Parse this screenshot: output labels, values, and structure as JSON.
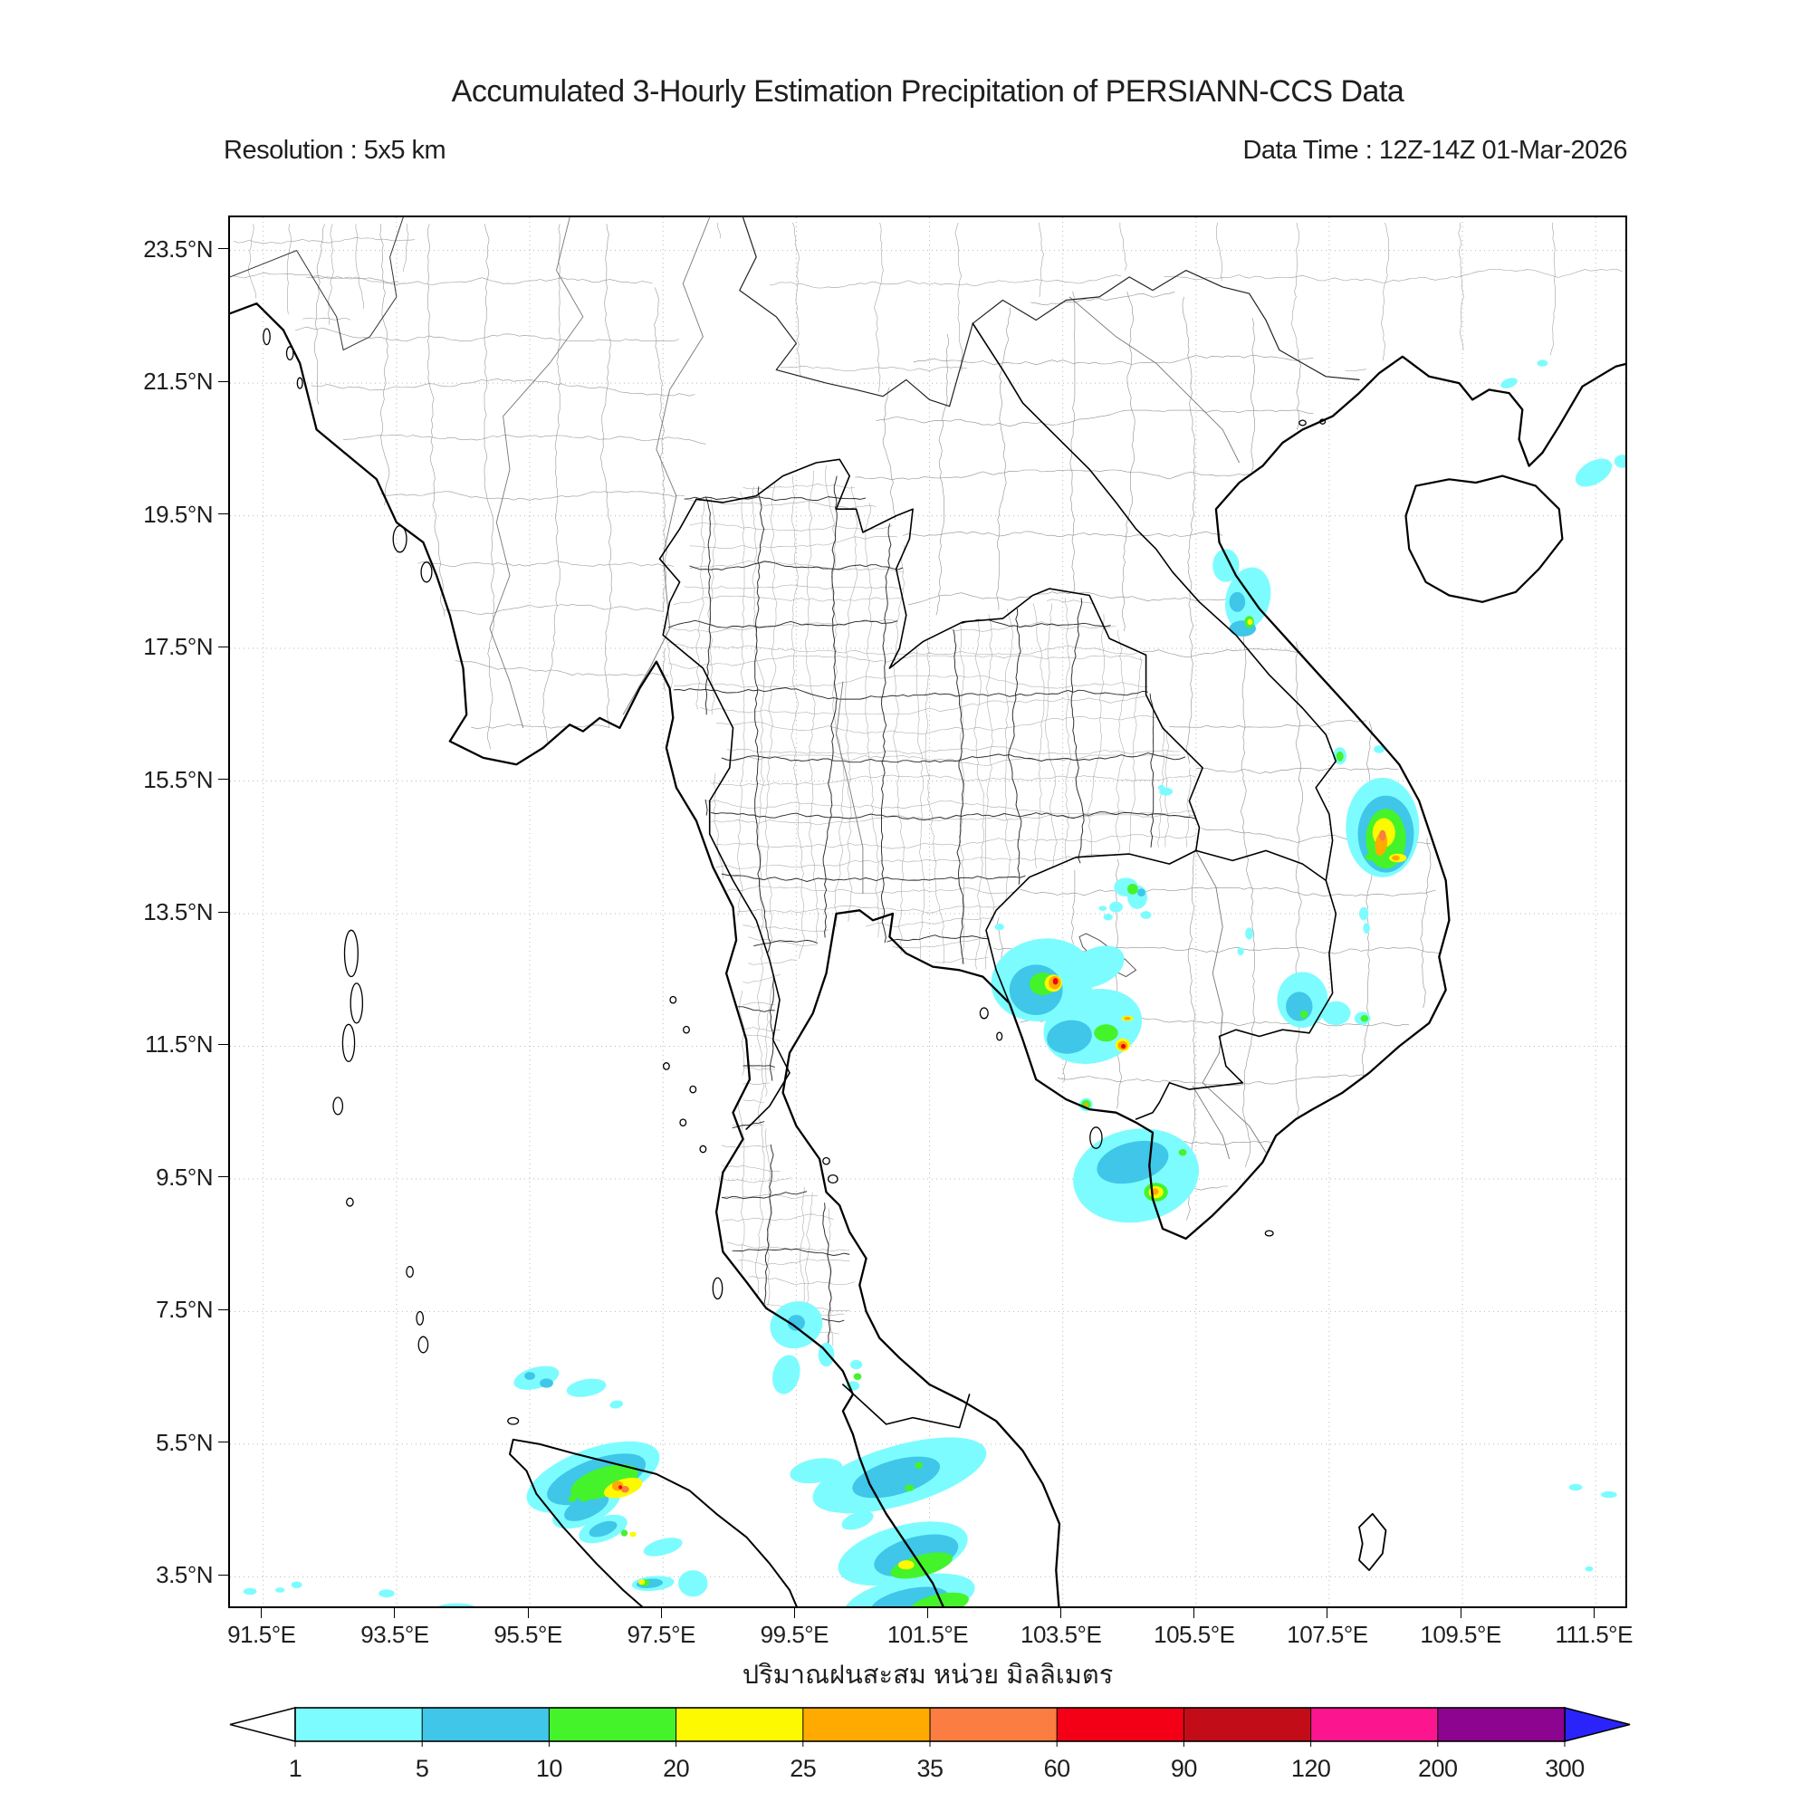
{
  "header": {
    "title": "Accumulated 3-Hourly Estimation Precipitation of PERSIANN-CCS Data",
    "resolution": "Resolution : 5x5 km",
    "data_time": "Data Time : 12Z-14Z 01-Mar-2026"
  },
  "map": {
    "lon_range": [
      91,
      112
    ],
    "lat_range": [
      3,
      24
    ],
    "grid": true,
    "lon_ticks": [
      {
        "value": 91.5,
        "label": "91.5°E"
      },
      {
        "value": 93.5,
        "label": "93.5°E"
      },
      {
        "value": 95.5,
        "label": "95.5°E"
      },
      {
        "value": 97.5,
        "label": "97.5°E"
      },
      {
        "value": 99.5,
        "label": "99.5°E"
      },
      {
        "value": 101.5,
        "label": "101.5°E"
      },
      {
        "value": 103.5,
        "label": "103.5°E"
      },
      {
        "value": 105.5,
        "label": "105.5°E"
      },
      {
        "value": 107.5,
        "label": "107.5°E"
      },
      {
        "value": 109.5,
        "label": "109.5°E"
      },
      {
        "value": 111.5,
        "label": "111.5°E"
      }
    ],
    "lat_ticks": [
      {
        "value": 23.5,
        "label": "23.5°N"
      },
      {
        "value": 21.5,
        "label": "21.5°N"
      },
      {
        "value": 19.5,
        "label": "19.5°N"
      },
      {
        "value": 17.5,
        "label": "17.5°N"
      },
      {
        "value": 15.5,
        "label": "15.5°N"
      },
      {
        "value": 13.5,
        "label": "13.5°N"
      },
      {
        "value": 11.5,
        "label": "11.5°N"
      },
      {
        "value": 9.5,
        "label": "9.5°N"
      },
      {
        "value": 7.5,
        "label": "7.5°N"
      },
      {
        "value": 5.5,
        "label": "5.5°N"
      },
      {
        "value": 3.5,
        "label": "3.5°N"
      }
    ]
  },
  "colorbar": {
    "label_thai": "ปริมาณฝนสะสม หน่วย มิลลิเมตร",
    "units": "mm",
    "tick_labels": [
      "1",
      "5",
      "10",
      "20",
      "25",
      "35",
      "60",
      "90",
      "120",
      "200",
      "300"
    ],
    "level_colors": [
      "#7dfcff",
      "#3fc6e8",
      "#45f32b",
      "#fdf900",
      "#ffaa00",
      "#fb7d41",
      "#f30016",
      "#c20d19",
      "#fb1690",
      "#8d0490"
    ],
    "underflow_color": "#ffffff",
    "overflow_color": "#2b24fa",
    "outline_color": "#000000"
  },
  "precipitation_cells": [
    {
      "lon": 105.95,
      "lat": 18.75,
      "rx": 0.2,
      "ry": 0.25,
      "rot": 0,
      "level": 1
    },
    {
      "lon": 106.28,
      "lat": 18.25,
      "rx": 0.33,
      "ry": 0.48,
      "rot": 15,
      "level": 1
    },
    {
      "lon": 106.12,
      "lat": 18.2,
      "rx": 0.12,
      "ry": 0.15,
      "rot": 0,
      "level": 2
    },
    {
      "lon": 106.2,
      "lat": 17.8,
      "rx": 0.2,
      "ry": 0.12,
      "rot": 0,
      "level": 2
    },
    {
      "lon": 106.3,
      "lat": 17.9,
      "rx": 0.07,
      "ry": 0.09,
      "rot": 0,
      "level": 3
    },
    {
      "lon": 106.31,
      "lat": 17.9,
      "rx": 0.04,
      "ry": 0.045,
      "rot": 0,
      "level": 4
    },
    {
      "lon": 111.47,
      "lat": 20.15,
      "rx": 0.3,
      "ry": 0.17,
      "rot": -30,
      "level": 1
    },
    {
      "lon": 111.9,
      "lat": 20.32,
      "rx": 0.12,
      "ry": 0.1,
      "rot": 0,
      "level": 1
    },
    {
      "lon": 110.2,
      "lat": 21.5,
      "rx": 0.13,
      "ry": 0.07,
      "rot": -20,
      "level": 1
    },
    {
      "lon": 110.7,
      "lat": 21.8,
      "rx": 0.08,
      "ry": 0.05,
      "rot": 0,
      "level": 1
    },
    {
      "lon": 107.66,
      "lat": 15.88,
      "rx": 0.1,
      "ry": 0.13,
      "rot": 0,
      "level": 1
    },
    {
      "lon": 107.66,
      "lat": 15.87,
      "rx": 0.055,
      "ry": 0.075,
      "rot": 0,
      "level": 3
    },
    {
      "lon": 108.25,
      "lat": 15.98,
      "rx": 0.08,
      "ry": 0.06,
      "rot": 0,
      "level": 1
    },
    {
      "lon": 108.3,
      "lat": 14.8,
      "rx": 0.55,
      "ry": 0.75,
      "rot": 0,
      "level": 1
    },
    {
      "lon": 108.35,
      "lat": 14.7,
      "rx": 0.42,
      "ry": 0.58,
      "rot": 0,
      "level": 2
    },
    {
      "lon": 108.35,
      "lat": 14.63,
      "rx": 0.3,
      "ry": 0.45,
      "rot": 0,
      "level": 3
    },
    {
      "lon": 108.32,
      "lat": 14.72,
      "rx": 0.17,
      "ry": 0.22,
      "rot": 0,
      "level": 4
    },
    {
      "lon": 108.28,
      "lat": 14.55,
      "rx": 0.09,
      "ry": 0.18,
      "rot": 8,
      "level": 5
    },
    {
      "lon": 108.3,
      "lat": 14.68,
      "rx": 0.05,
      "ry": 0.08,
      "rot": 0,
      "level": 6
    },
    {
      "lon": 108.53,
      "lat": 14.34,
      "rx": 0.13,
      "ry": 0.065,
      "rot": 0,
      "level": 4
    },
    {
      "lon": 108.5,
      "lat": 14.34,
      "rx": 0.06,
      "ry": 0.04,
      "rot": 0,
      "level": 5
    },
    {
      "lon": 108.1,
      "lat": 14.35,
      "rx": 0.06,
      "ry": 0.05,
      "rot": 0,
      "level": 3
    },
    {
      "lon": 108.02,
      "lat": 13.5,
      "rx": 0.07,
      "ry": 0.1,
      "rot": 0,
      "level": 1
    },
    {
      "lon": 108.06,
      "lat": 13.28,
      "rx": 0.05,
      "ry": 0.08,
      "rot": 0,
      "level": 1
    },
    {
      "lon": 107.1,
      "lat": 12.2,
      "rx": 0.38,
      "ry": 0.42,
      "rot": 0,
      "level": 1
    },
    {
      "lon": 107.6,
      "lat": 12.0,
      "rx": 0.22,
      "ry": 0.18,
      "rot": 0,
      "level": 1
    },
    {
      "lon": 107.05,
      "lat": 12.1,
      "rx": 0.2,
      "ry": 0.22,
      "rot": 0,
      "level": 2
    },
    {
      "lon": 107.12,
      "lat": 11.98,
      "rx": 0.06,
      "ry": 0.06,
      "rot": 0,
      "level": 3
    },
    {
      "lon": 108.0,
      "lat": 11.92,
      "rx": 0.12,
      "ry": 0.1,
      "rot": 0,
      "level": 1
    },
    {
      "lon": 108.03,
      "lat": 11.92,
      "rx": 0.06,
      "ry": 0.05,
      "rot": 0,
      "level": 3
    },
    {
      "lon": 106.3,
      "lat": 13.2,
      "rx": 0.06,
      "ry": 0.09,
      "rot": 0,
      "level": 1
    },
    {
      "lon": 106.17,
      "lat": 12.93,
      "rx": 0.05,
      "ry": 0.06,
      "rot": 0,
      "level": 1
    },
    {
      "lon": 103.2,
      "lat": 12.5,
      "rx": 0.78,
      "ry": 0.62,
      "rot": -10,
      "level": 1
    },
    {
      "lon": 103.95,
      "lat": 11.8,
      "rx": 0.75,
      "ry": 0.55,
      "rot": -15,
      "level": 1
    },
    {
      "lon": 104.0,
      "lat": 12.7,
      "rx": 0.45,
      "ry": 0.28,
      "rot": -25,
      "level": 1
    },
    {
      "lon": 103.1,
      "lat": 12.35,
      "rx": 0.4,
      "ry": 0.38,
      "rot": 0,
      "level": 2
    },
    {
      "lon": 103.2,
      "lat": 12.44,
      "rx": 0.2,
      "ry": 0.17,
      "rot": 0,
      "level": 3
    },
    {
      "lon": 103.36,
      "lat": 12.45,
      "rx": 0.13,
      "ry": 0.13,
      "rot": 0,
      "level": 4
    },
    {
      "lon": 103.38,
      "lat": 12.46,
      "rx": 0.09,
      "ry": 0.1,
      "rot": 0,
      "level": 5
    },
    {
      "lon": 103.39,
      "lat": 12.48,
      "rx": 0.04,
      "ry": 0.05,
      "rot": 0,
      "level": 7
    },
    {
      "lon": 103.6,
      "lat": 11.64,
      "rx": 0.34,
      "ry": 0.25,
      "rot": -10,
      "level": 2
    },
    {
      "lon": 104.15,
      "lat": 11.7,
      "rx": 0.18,
      "ry": 0.13,
      "rot": 0,
      "level": 3
    },
    {
      "lon": 104.4,
      "lat": 11.52,
      "rx": 0.11,
      "ry": 0.1,
      "rot": 0,
      "level": 4
    },
    {
      "lon": 104.4,
      "lat": 11.51,
      "rx": 0.075,
      "ry": 0.07,
      "rot": 0,
      "level": 5
    },
    {
      "lon": 104.41,
      "lat": 11.5,
      "rx": 0.035,
      "ry": 0.035,
      "rot": 0,
      "level": 7
    },
    {
      "lon": 104.47,
      "lat": 11.92,
      "rx": 0.09,
      "ry": 0.04,
      "rot": 0,
      "level": 4
    },
    {
      "lon": 104.47,
      "lat": 11.92,
      "rx": 0.05,
      "ry": 0.025,
      "rot": 0,
      "level": 5
    },
    {
      "lon": 102.55,
      "lat": 13.3,
      "rx": 0.07,
      "ry": 0.05,
      "rot": 0,
      "level": 1
    },
    {
      "lon": 104.6,
      "lat": 9.55,
      "rx": 0.95,
      "ry": 0.7,
      "rot": -10,
      "level": 1
    },
    {
      "lon": 104.55,
      "lat": 9.75,
      "rx": 0.55,
      "ry": 0.3,
      "rot": -15,
      "level": 2
    },
    {
      "lon": 104.9,
      "lat": 9.3,
      "rx": 0.18,
      "ry": 0.14,
      "rot": 0,
      "level": 3
    },
    {
      "lon": 104.9,
      "lat": 9.3,
      "rx": 0.11,
      "ry": 0.09,
      "rot": 0,
      "level": 4
    },
    {
      "lon": 104.88,
      "lat": 9.31,
      "rx": 0.06,
      "ry": 0.05,
      "rot": 0,
      "level": 5
    },
    {
      "lon": 105.3,
      "lat": 9.9,
      "rx": 0.06,
      "ry": 0.05,
      "rot": 0,
      "level": 3
    },
    {
      "lon": 103.85,
      "lat": 10.62,
      "rx": 0.1,
      "ry": 0.1,
      "rot": 0,
      "level": 1
    },
    {
      "lon": 103.85,
      "lat": 10.62,
      "rx": 0.07,
      "ry": 0.07,
      "rot": 0,
      "level": 3
    },
    {
      "lon": 103.86,
      "lat": 10.62,
      "rx": 0.03,
      "ry": 0.03,
      "rot": 0,
      "level": 5
    },
    {
      "lon": 105.05,
      "lat": 15.34,
      "rx": 0.1,
      "ry": 0.06,
      "rot": 0,
      "level": 1
    },
    {
      "lon": 104.98,
      "lat": 15.4,
      "rx": 0.05,
      "ry": 0.04,
      "rot": 0,
      "level": 1
    },
    {
      "lon": 104.45,
      "lat": 13.9,
      "rx": 0.18,
      "ry": 0.14,
      "rot": 0,
      "level": 1
    },
    {
      "lon": 104.62,
      "lat": 13.75,
      "rx": 0.15,
      "ry": 0.18,
      "rot": 0,
      "level": 1
    },
    {
      "lon": 104.55,
      "lat": 13.87,
      "rx": 0.08,
      "ry": 0.08,
      "rot": 0,
      "level": 3
    },
    {
      "lon": 104.68,
      "lat": 13.82,
      "rx": 0.06,
      "ry": 0.06,
      "rot": 0,
      "level": 2
    },
    {
      "lon": 104.3,
      "lat": 13.6,
      "rx": 0.1,
      "ry": 0.08,
      "rot": 0,
      "level": 1
    },
    {
      "lon": 104.75,
      "lat": 13.48,
      "rx": 0.08,
      "ry": 0.06,
      "rot": 0,
      "level": 1
    },
    {
      "lon": 104.18,
      "lat": 13.45,
      "rx": 0.07,
      "ry": 0.05,
      "rot": 0,
      "level": 1
    },
    {
      "lon": 104.1,
      "lat": 13.58,
      "rx": 0.06,
      "ry": 0.04,
      "rot": 0,
      "level": 1
    },
    {
      "lon": 99.5,
      "lat": 7.3,
      "rx": 0.4,
      "ry": 0.35,
      "rot": -20,
      "level": 1
    },
    {
      "lon": 99.5,
      "lat": 7.33,
      "rx": 0.13,
      "ry": 0.12,
      "rot": 0,
      "level": 2
    },
    {
      "lon": 99.35,
      "lat": 6.55,
      "rx": 0.2,
      "ry": 0.3,
      "rot": 15,
      "level": 1
    },
    {
      "lon": 99.95,
      "lat": 6.85,
      "rx": 0.12,
      "ry": 0.18,
      "rot": 0,
      "level": 1
    },
    {
      "lon": 100.4,
      "lat": 6.7,
      "rx": 0.09,
      "ry": 0.07,
      "rot": 0,
      "level": 1
    },
    {
      "lon": 100.42,
      "lat": 6.52,
      "rx": 0.06,
      "ry": 0.05,
      "rot": 0,
      "level": 3
    },
    {
      "lon": 100.35,
      "lat": 6.38,
      "rx": 0.1,
      "ry": 0.07,
      "rot": 0,
      "level": 1
    },
    {
      "lon": 95.6,
      "lat": 6.5,
      "rx": 0.35,
      "ry": 0.16,
      "rot": -15,
      "level": 1
    },
    {
      "lon": 95.75,
      "lat": 6.42,
      "rx": 0.1,
      "ry": 0.07,
      "rot": 0,
      "level": 2
    },
    {
      "lon": 95.5,
      "lat": 6.53,
      "rx": 0.08,
      "ry": 0.06,
      "rot": 0,
      "level": 2
    },
    {
      "lon": 96.35,
      "lat": 6.35,
      "rx": 0.3,
      "ry": 0.13,
      "rot": -10,
      "level": 1
    },
    {
      "lon": 96.8,
      "lat": 6.1,
      "rx": 0.1,
      "ry": 0.06,
      "rot": -10,
      "level": 1
    },
    {
      "lon": 96.45,
      "lat": 5.0,
      "rx": 1.05,
      "ry": 0.43,
      "rot": -20,
      "level": 1
    },
    {
      "lon": 96.5,
      "lat": 4.97,
      "rx": 0.78,
      "ry": 0.3,
      "rot": -20,
      "level": 2
    },
    {
      "lon": 96.62,
      "lat": 4.93,
      "rx": 0.53,
      "ry": 0.22,
      "rot": -18,
      "level": 3
    },
    {
      "lon": 96.9,
      "lat": 4.84,
      "rx": 0.3,
      "ry": 0.13,
      "rot": -18,
      "level": 4
    },
    {
      "lon": 96.82,
      "lat": 4.87,
      "rx": 0.085,
      "ry": 0.075,
      "rot": 0,
      "level": 5
    },
    {
      "lon": 96.93,
      "lat": 4.82,
      "rx": 0.06,
      "ry": 0.05,
      "rot": 0,
      "level": 6
    },
    {
      "lon": 96.86,
      "lat": 4.85,
      "rx": 0.03,
      "ry": 0.03,
      "rot": 0,
      "level": 7
    },
    {
      "lon": 96.35,
      "lat": 4.55,
      "rx": 0.55,
      "ry": 0.25,
      "rot": -25,
      "level": 1
    },
    {
      "lon": 96.35,
      "lat": 4.55,
      "rx": 0.36,
      "ry": 0.16,
      "rot": -25,
      "level": 2
    },
    {
      "lon": 96.14,
      "lat": 4.68,
      "rx": 0.06,
      "ry": 0.05,
      "rot": 0,
      "level": 3
    },
    {
      "lon": 96.31,
      "lat": 4.68,
      "rx": 0.06,
      "ry": 0.05,
      "rot": 0,
      "level": 3
    },
    {
      "lon": 96.6,
      "lat": 4.22,
      "rx": 0.38,
      "ry": 0.18,
      "rot": -20,
      "level": 1
    },
    {
      "lon": 96.6,
      "lat": 4.22,
      "rx": 0.22,
      "ry": 0.1,
      "rot": -20,
      "level": 2
    },
    {
      "lon": 96.92,
      "lat": 4.16,
      "rx": 0.05,
      "ry": 0.05,
      "rot": 0,
      "level": 3
    },
    {
      "lon": 97.05,
      "lat": 4.14,
      "rx": 0.05,
      "ry": 0.04,
      "rot": 0,
      "level": 4
    },
    {
      "lon": 97.5,
      "lat": 3.95,
      "rx": 0.3,
      "ry": 0.12,
      "rot": -15,
      "level": 1
    },
    {
      "lon": 97.35,
      "lat": 3.4,
      "rx": 0.32,
      "ry": 0.11,
      "rot": -5,
      "level": 1
    },
    {
      "lon": 97.3,
      "lat": 3.4,
      "rx": 0.2,
      "ry": 0.07,
      "rot": -5,
      "level": 2
    },
    {
      "lon": 97.22,
      "lat": 3.41,
      "rx": 0.08,
      "ry": 0.05,
      "rot": 0,
      "level": 3
    },
    {
      "lon": 97.18,
      "lat": 3.42,
      "rx": 0.05,
      "ry": 0.04,
      "rot": 0,
      "level": 4
    },
    {
      "lon": 97.95,
      "lat": 3.4,
      "rx": 0.22,
      "ry": 0.2,
      "rot": 0,
      "level": 1
    },
    {
      "lon": 94.4,
      "lat": 3.02,
      "rx": 0.3,
      "ry": 0.08,
      "rot": 0,
      "level": 1
    },
    {
      "lon": 93.35,
      "lat": 3.25,
      "rx": 0.12,
      "ry": 0.06,
      "rot": 0,
      "level": 1
    },
    {
      "lon": 92.0,
      "lat": 3.38,
      "rx": 0.08,
      "ry": 0.05,
      "rot": 0,
      "level": 1
    },
    {
      "lon": 91.3,
      "lat": 3.28,
      "rx": 0.1,
      "ry": 0.05,
      "rot": 0,
      "level": 1
    },
    {
      "lon": 91.75,
      "lat": 3.3,
      "rx": 0.07,
      "ry": 0.04,
      "rot": 0,
      "level": 1
    },
    {
      "lon": 101.05,
      "lat": 5.03,
      "rx": 1.35,
      "ry": 0.45,
      "rot": -16,
      "level": 1
    },
    {
      "lon": 99.8,
      "lat": 5.1,
      "rx": 0.4,
      "ry": 0.18,
      "rot": -10,
      "level": 1
    },
    {
      "lon": 101.0,
      "lat": 5.0,
      "rx": 0.68,
      "ry": 0.26,
      "rot": -16,
      "level": 2
    },
    {
      "lon": 101.34,
      "lat": 5.18,
      "rx": 0.06,
      "ry": 0.05,
      "rot": 0,
      "level": 3
    },
    {
      "lon": 101.2,
      "lat": 4.84,
      "rx": 0.07,
      "ry": 0.05,
      "rot": 0,
      "level": 3
    },
    {
      "lon": 100.42,
      "lat": 4.35,
      "rx": 0.25,
      "ry": 0.12,
      "rot": -20,
      "level": 1
    },
    {
      "lon": 101.1,
      "lat": 3.85,
      "rx": 1.0,
      "ry": 0.42,
      "rot": -15,
      "level": 1
    },
    {
      "lon": 101.3,
      "lat": 3.82,
      "rx": 0.65,
      "ry": 0.28,
      "rot": -15,
      "level": 2
    },
    {
      "lon": 101.38,
      "lat": 3.67,
      "rx": 0.48,
      "ry": 0.16,
      "rot": -15,
      "level": 3
    },
    {
      "lon": 101.15,
      "lat": 3.68,
      "rx": 0.12,
      "ry": 0.07,
      "rot": 0,
      "level": 4
    },
    {
      "lon": 101.2,
      "lat": 3.15,
      "rx": 1.0,
      "ry": 0.35,
      "rot": -12,
      "level": 1
    },
    {
      "lon": 101.2,
      "lat": 3.1,
      "rx": 0.6,
      "ry": 0.22,
      "rot": -12,
      "level": 2
    },
    {
      "lon": 101.65,
      "lat": 3.08,
      "rx": 0.45,
      "ry": 0.16,
      "rot": -12,
      "level": 3
    },
    {
      "lon": 101.49,
      "lat": 2.98,
      "rx": 0.1,
      "ry": 0.05,
      "rot": 0,
      "level": 4
    },
    {
      "lon": 111.2,
      "lat": 4.85,
      "rx": 0.1,
      "ry": 0.05,
      "rot": 0,
      "level": 1
    },
    {
      "lon": 111.7,
      "lat": 4.74,
      "rx": 0.12,
      "ry": 0.05,
      "rot": 0,
      "level": 1
    },
    {
      "lon": 111.4,
      "lat": 3.62,
      "rx": 0.06,
      "ry": 0.04,
      "rot": 0,
      "level": 1
    }
  ]
}
